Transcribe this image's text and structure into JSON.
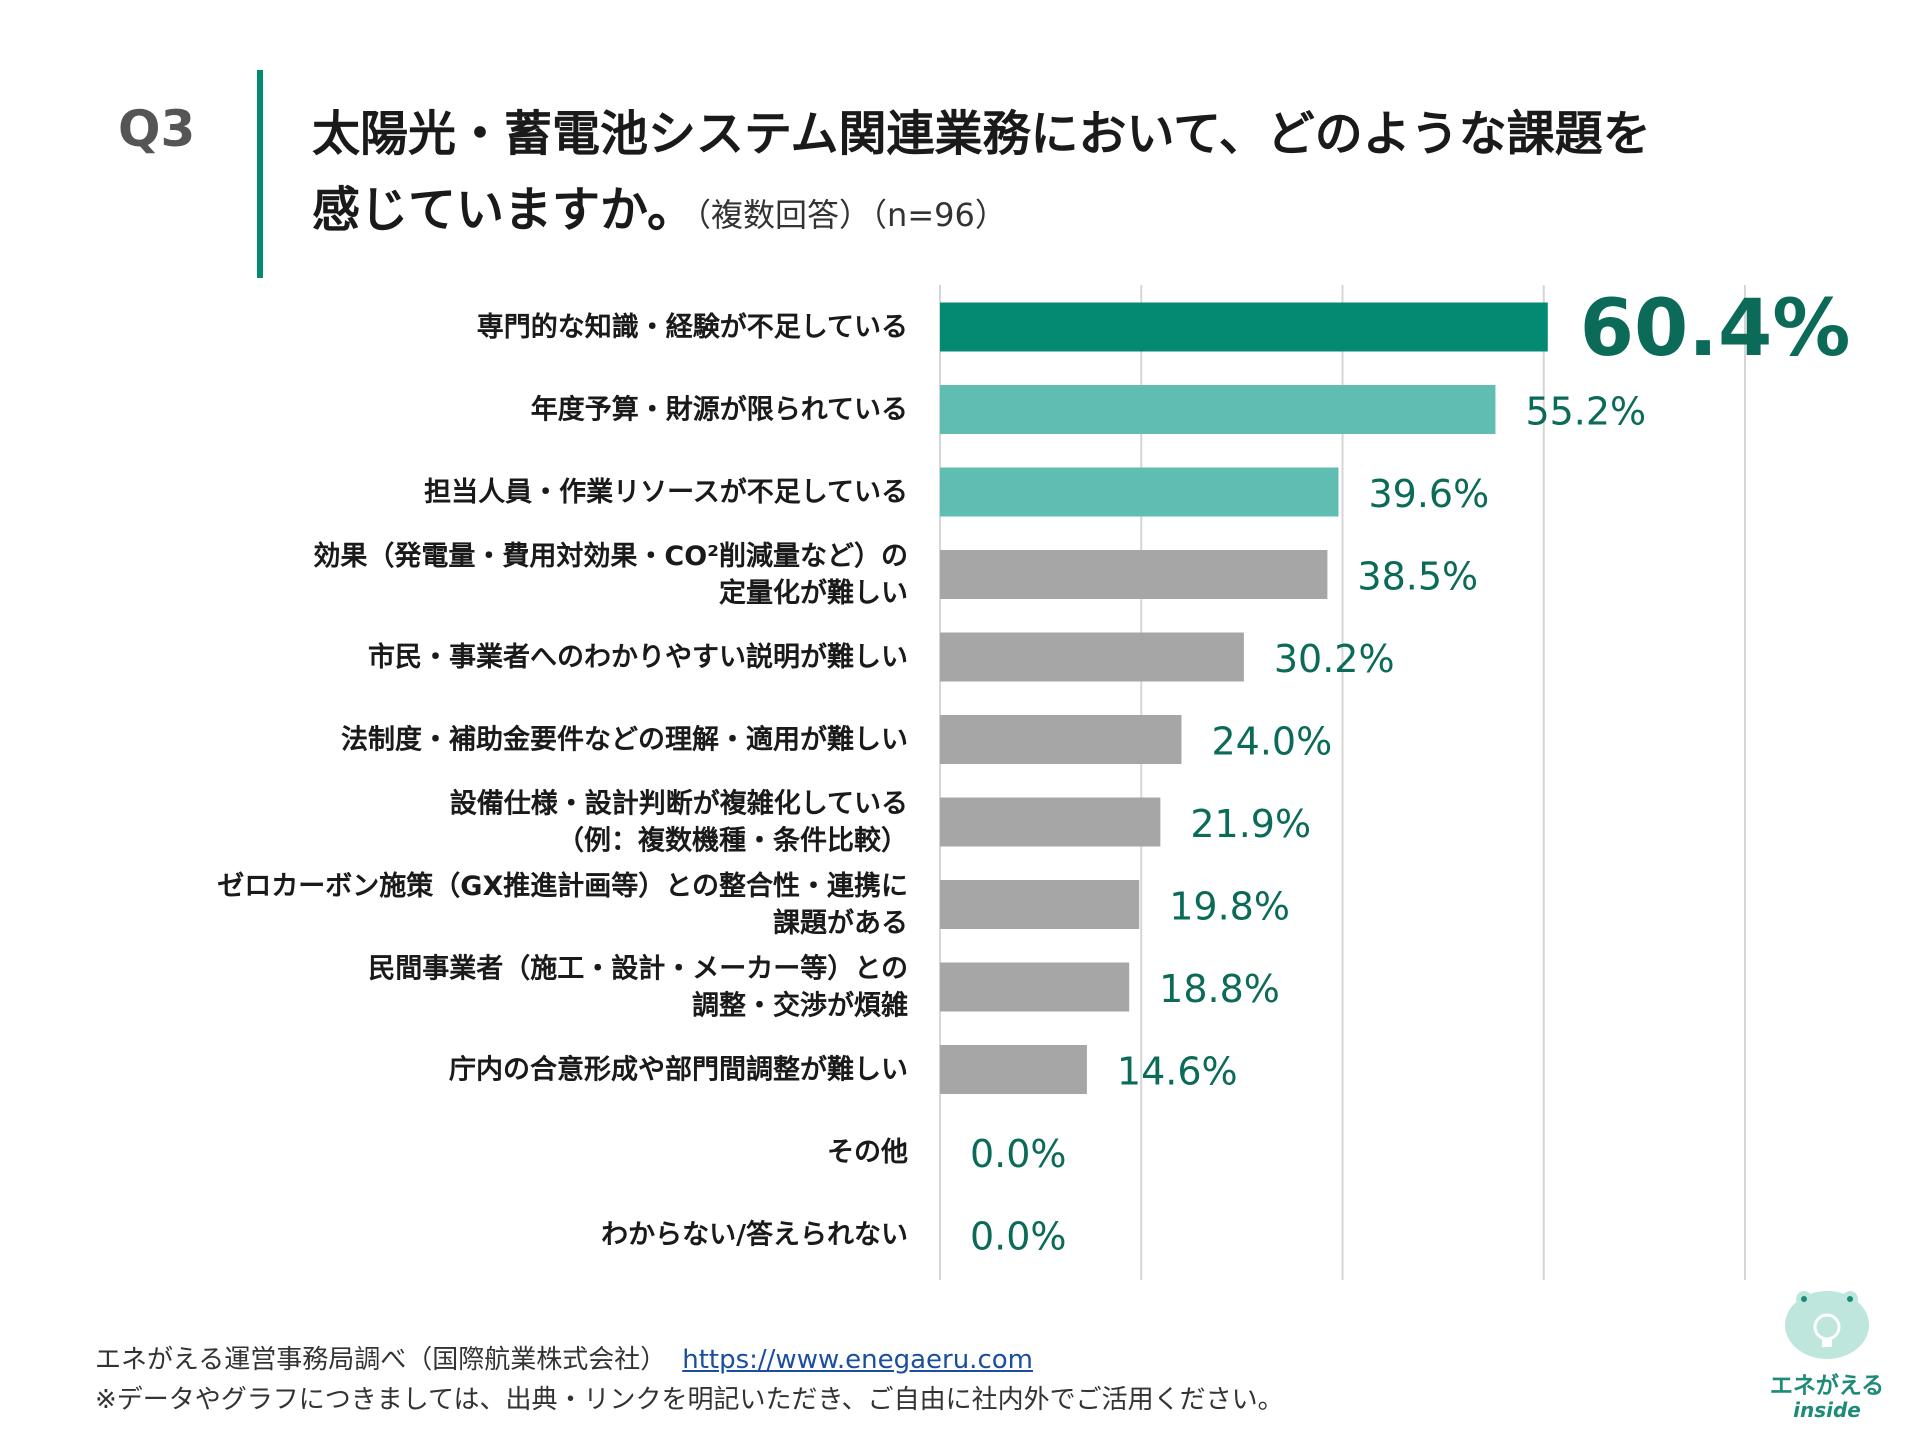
{
  "question": {
    "number": "Q3",
    "line1": "太陽光・蓄電池システム関連業務において、どのような課題を",
    "line2": "感じていますか。",
    "sub": "（複数回答）（n=96）"
  },
  "chart_data": {
    "type": "bar",
    "orientation": "horizontal",
    "title": "太陽光・蓄電池システム関連業務において、どのような課題を感じていますか。（複数回答）（n=96）",
    "xlim": [
      0,
      80
    ],
    "grid": true,
    "categories": [
      [
        "専門的な知識・経験が不足している"
      ],
      [
        "年度予算・財源が限られている"
      ],
      [
        "担当人員・作業リソースが不足している"
      ],
      [
        "効果（発電量・費用対効果・CO²削減量など）の",
        "定量化が難しい"
      ],
      [
        "市民・事業者へのわかりやすい説明が難しい"
      ],
      [
        "法制度・補助金要件などの理解・適用が難しい"
      ],
      [
        "設備仕様・設計判断が複雑化している",
        "（例：複数機種・条件比較）"
      ],
      [
        "ゼロカーボン施策（GX推進計画等）との整合性・連携に",
        "課題がある"
      ],
      [
        "民間事業者（施工・設計・メーカー等）との",
        "調整・交渉が煩雑"
      ],
      [
        "庁内の合意形成や部門間調整が難しい"
      ],
      [
        "その他"
      ],
      [
        "わからない/答えられない"
      ]
    ],
    "values": [
      60.4,
      55.2,
      39.6,
      38.5,
      30.2,
      24.0,
      21.9,
      19.8,
      18.8,
      14.6,
      0.0,
      0.0
    ],
    "value_labels": [
      "60.4%",
      "55.2%",
      "39.6%",
      "38.5%",
      "30.2%",
      "24.0%",
      "21.9%",
      "19.8%",
      "18.8%",
      "14.6%",
      "0.0%",
      "0.0%"
    ],
    "bar_colors": [
      "#048a72",
      "#5fbdb2",
      "#5fbdb2",
      "#a6a6a6",
      "#a6a6a6",
      "#a6a6a6",
      "#a6a6a6",
      "#a6a6a6",
      "#a6a6a6",
      "#a6a6a6",
      "#a6a6a6",
      "#a6a6a6"
    ]
  },
  "footer": {
    "source": "エネがえる運営事務局調べ（国際航業株式会社）",
    "url": "https://www.enegaeru.com",
    "note": "※データやグラフにつきましては、出典・リンクを明記いただき、ご自由に社内外でご活用ください。"
  },
  "logo": {
    "name": "エネがえる",
    "sub": "inside"
  }
}
